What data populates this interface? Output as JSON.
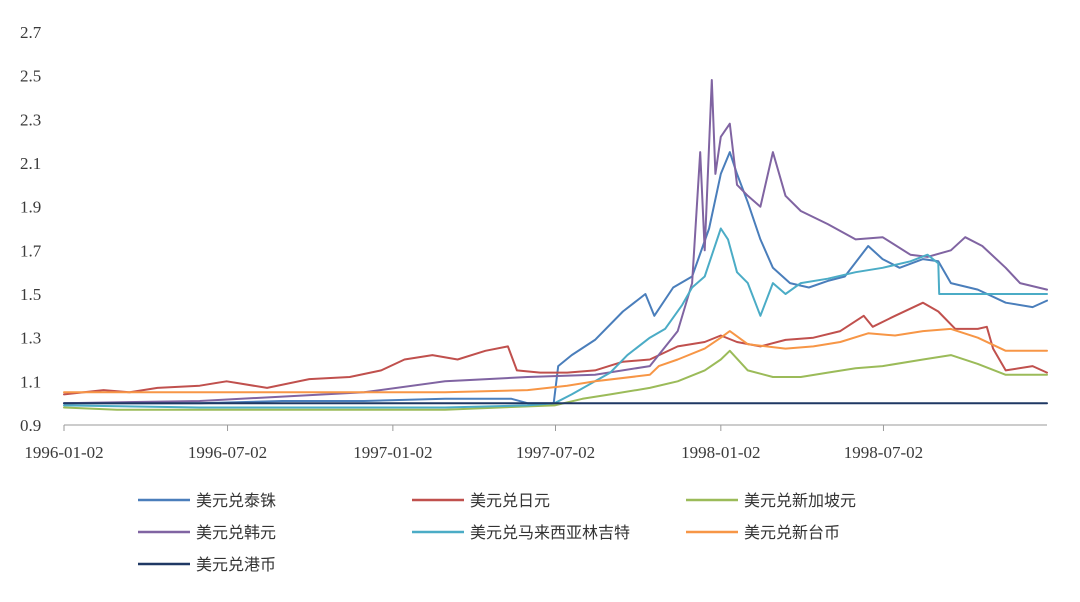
{
  "chart_data": {
    "type": "line",
    "title": "",
    "xlabel": "",
    "ylabel": "",
    "ylim": [
      0.9,
      2.7
    ],
    "y_ticks": [
      "0.9",
      "1.1",
      "1.3",
      "1.5",
      "1.7",
      "1.9",
      "2.1",
      "2.3",
      "2.5",
      "2.7"
    ],
    "x_tick_labels": [
      "1996-01-02",
      "1996-07-02",
      "1997-01-02",
      "1997-07-02",
      "1998-01-02",
      "1998-07-02"
    ],
    "x_range": [
      "1996-01-02",
      "1998-12-31"
    ],
    "grid": false,
    "legend_position": "bottom",
    "series": [
      {
        "name": "美元兑泰铢",
        "color": "#4a7ebb",
        "points": [
          [
            "1996-01-02",
            1.0
          ],
          [
            "1996-03-01",
            1.0
          ],
          [
            "1996-06-01",
            1.0
          ],
          [
            "1996-09-01",
            1.01
          ],
          [
            "1996-12-01",
            1.01
          ],
          [
            "1997-03-01",
            1.02
          ],
          [
            "1997-05-14",
            1.02
          ],
          [
            "1997-06-01",
            1.0
          ],
          [
            "1997-06-30",
            1.0
          ],
          [
            "1997-07-05",
            1.17
          ],
          [
            "1997-07-20",
            1.22
          ],
          [
            "1997-08-15",
            1.29
          ],
          [
            "1997-09-15",
            1.42
          ],
          [
            "1997-10-10",
            1.5
          ],
          [
            "1997-10-20",
            1.4
          ],
          [
            "1997-11-10",
            1.53
          ],
          [
            "1997-12-01",
            1.58
          ],
          [
            "1997-12-20",
            1.8
          ],
          [
            "1998-01-02",
            2.05
          ],
          [
            "1998-01-12",
            2.15
          ],
          [
            "1998-01-20",
            2.05
          ],
          [
            "1998-02-01",
            1.92
          ],
          [
            "1998-02-15",
            1.75
          ],
          [
            "1998-03-01",
            1.62
          ],
          [
            "1998-03-20",
            1.55
          ],
          [
            "1998-04-10",
            1.53
          ],
          [
            "1998-05-01",
            1.56
          ],
          [
            "1998-05-20",
            1.58
          ],
          [
            "1998-06-15",
            1.72
          ],
          [
            "1998-07-01",
            1.66
          ],
          [
            "1998-07-20",
            1.62
          ],
          [
            "1998-08-15",
            1.66
          ],
          [
            "1998-09-01",
            1.65
          ],
          [
            "1998-09-15",
            1.55
          ],
          [
            "1998-10-15",
            1.52
          ],
          [
            "1998-11-15",
            1.46
          ],
          [
            "1998-12-15",
            1.44
          ],
          [
            "1998-12-31",
            1.47
          ]
        ]
      },
      {
        "name": "美元兑日元",
        "color": "#c0504d",
        "points": [
          [
            "1996-01-02",
            1.04
          ],
          [
            "1996-02-15",
            1.06
          ],
          [
            "1996-03-15",
            1.05
          ],
          [
            "1996-04-15",
            1.07
          ],
          [
            "1996-06-01",
            1.08
          ],
          [
            "1996-07-01",
            1.1
          ],
          [
            "1996-08-15",
            1.07
          ],
          [
            "1996-10-01",
            1.11
          ],
          [
            "1996-11-15",
            1.12
          ],
          [
            "1996-12-20",
            1.15
          ],
          [
            "1997-01-15",
            1.2
          ],
          [
            "1997-02-15",
            1.22
          ],
          [
            "1997-03-15",
            1.2
          ],
          [
            "1997-04-15",
            1.24
          ],
          [
            "1997-05-10",
            1.26
          ],
          [
            "1997-05-20",
            1.15
          ],
          [
            "1997-06-15",
            1.14
          ],
          [
            "1997-07-15",
            1.14
          ],
          [
            "1997-08-15",
            1.15
          ],
          [
            "1997-09-15",
            1.19
          ],
          [
            "1997-10-15",
            1.2
          ],
          [
            "1997-11-15",
            1.26
          ],
          [
            "1997-12-15",
            1.28
          ],
          [
            "1998-01-02",
            1.31
          ],
          [
            "1998-01-20",
            1.28
          ],
          [
            "1998-02-15",
            1.26
          ],
          [
            "1998-03-15",
            1.29
          ],
          [
            "1998-04-15",
            1.3
          ],
          [
            "1998-05-15",
            1.33
          ],
          [
            "1998-06-10",
            1.4
          ],
          [
            "1998-06-20",
            1.35
          ],
          [
            "1998-07-15",
            1.4
          ],
          [
            "1998-08-15",
            1.46
          ],
          [
            "1998-09-01",
            1.42
          ],
          [
            "1998-09-20",
            1.34
          ],
          [
            "1998-10-05",
            1.34
          ],
          [
            "1998-10-15",
            1.34
          ],
          [
            "1998-10-25",
            1.35
          ],
          [
            "1998-11-01",
            1.25
          ],
          [
            "1998-11-15",
            1.15
          ],
          [
            "1998-12-15",
            1.17
          ],
          [
            "1998-12-31",
            1.14
          ]
        ]
      },
      {
        "name": "美元兑新加坡元",
        "color": "#9bbb59",
        "points": [
          [
            "1996-01-02",
            0.98
          ],
          [
            "1996-03-01",
            0.97
          ],
          [
            "1996-06-01",
            0.97
          ],
          [
            "1996-09-01",
            0.97
          ],
          [
            "1996-12-01",
            0.97
          ],
          [
            "1997-03-01",
            0.97
          ],
          [
            "1997-05-01",
            0.98
          ],
          [
            "1997-07-01",
            0.99
          ],
          [
            "1997-08-01",
            1.02
          ],
          [
            "1997-09-01",
            1.04
          ],
          [
            "1997-10-15",
            1.07
          ],
          [
            "1997-11-15",
            1.1
          ],
          [
            "1997-12-15",
            1.15
          ],
          [
            "1998-01-02",
            1.2
          ],
          [
            "1998-01-12",
            1.24
          ],
          [
            "1998-02-01",
            1.15
          ],
          [
            "1998-03-01",
            1.12
          ],
          [
            "1998-04-01",
            1.12
          ],
          [
            "1998-05-01",
            1.14
          ],
          [
            "1998-06-01",
            1.16
          ],
          [
            "1998-07-01",
            1.17
          ],
          [
            "1998-08-15",
            1.2
          ],
          [
            "1998-09-15",
            1.22
          ],
          [
            "1998-10-15",
            1.18
          ],
          [
            "1998-11-15",
            1.13
          ],
          [
            "1998-12-31",
            1.13
          ]
        ]
      },
      {
        "name": "美元兑韩元",
        "color": "#8064a2",
        "points": [
          [
            "1996-01-02",
            1.0
          ],
          [
            "1996-06-01",
            1.01
          ],
          [
            "1996-09-01",
            1.03
          ],
          [
            "1996-12-01",
            1.05
          ],
          [
            "1997-03-01",
            1.1
          ],
          [
            "1997-06-01",
            1.12
          ],
          [
            "1997-08-15",
            1.13
          ],
          [
            "1997-10-15",
            1.17
          ],
          [
            "1997-11-15",
            1.33
          ],
          [
            "1997-12-01",
            1.55
          ],
          [
            "1997-12-10",
            2.15
          ],
          [
            "1997-12-15",
            1.7
          ],
          [
            "1997-12-23",
            2.48
          ],
          [
            "1997-12-27",
            2.05
          ],
          [
            "1998-01-02",
            2.22
          ],
          [
            "1998-01-12",
            2.28
          ],
          [
            "1998-01-20",
            2.0
          ],
          [
            "1998-02-01",
            1.95
          ],
          [
            "1998-02-15",
            1.9
          ],
          [
            "1998-03-01",
            2.15
          ],
          [
            "1998-03-15",
            1.95
          ],
          [
            "1998-04-01",
            1.88
          ],
          [
            "1998-05-01",
            1.82
          ],
          [
            "1998-06-01",
            1.75
          ],
          [
            "1998-07-01",
            1.76
          ],
          [
            "1998-08-01",
            1.68
          ],
          [
            "1998-08-20",
            1.67
          ],
          [
            "1998-09-15",
            1.7
          ],
          [
            "1998-10-01",
            1.76
          ],
          [
            "1998-10-20",
            1.72
          ],
          [
            "1998-11-15",
            1.62
          ],
          [
            "1998-12-01",
            1.55
          ],
          [
            "1998-12-31",
            1.52
          ]
        ]
      },
      {
        "name": "美元兑马来西亚林吉特",
        "color": "#4bacc6",
        "points": [
          [
            "1996-01-02",
            0.99
          ],
          [
            "1996-06-01",
            0.98
          ],
          [
            "1996-12-01",
            0.98
          ],
          [
            "1997-03-01",
            0.98
          ],
          [
            "1997-06-01",
            0.99
          ],
          [
            "1997-07-01",
            1.0
          ],
          [
            "1997-07-20",
            1.04
          ],
          [
            "1997-08-15",
            1.1
          ],
          [
            "1997-09-01",
            1.14
          ],
          [
            "1997-09-20",
            1.22
          ],
          [
            "1997-10-15",
            1.3
          ],
          [
            "1997-11-01",
            1.34
          ],
          [
            "1997-11-20",
            1.45
          ],
          [
            "1997-12-01",
            1.53
          ],
          [
            "1997-12-15",
            1.58
          ],
          [
            "1998-01-02",
            1.8
          ],
          [
            "1998-01-10",
            1.75
          ],
          [
            "1998-01-20",
            1.6
          ],
          [
            "1998-02-01",
            1.55
          ],
          [
            "1998-02-15",
            1.4
          ],
          [
            "1998-03-01",
            1.55
          ],
          [
            "1998-03-15",
            1.5
          ],
          [
            "1998-04-01",
            1.55
          ],
          [
            "1998-05-01",
            1.57
          ],
          [
            "1998-06-01",
            1.6
          ],
          [
            "1998-07-01",
            1.62
          ],
          [
            "1998-08-01",
            1.65
          ],
          [
            "1998-08-20",
            1.68
          ],
          [
            "1998-09-01",
            1.64
          ],
          [
            "1998-09-02",
            1.5
          ],
          [
            "1998-12-31",
            1.5
          ]
        ]
      },
      {
        "name": "美元兑新台币",
        "color": "#f79646",
        "points": [
          [
            "1996-01-02",
            1.05
          ],
          [
            "1996-06-01",
            1.05
          ],
          [
            "1996-12-01",
            1.05
          ],
          [
            "1997-03-01",
            1.05
          ],
          [
            "1997-06-01",
            1.06
          ],
          [
            "1997-07-15",
            1.08
          ],
          [
            "1997-08-15",
            1.1
          ],
          [
            "1997-10-15",
            1.13
          ],
          [
            "1997-10-25",
            1.17
          ],
          [
            "1997-11-15",
            1.2
          ],
          [
            "1997-12-15",
            1.25
          ],
          [
            "1998-01-02",
            1.3
          ],
          [
            "1998-01-12",
            1.33
          ],
          [
            "1998-02-01",
            1.27
          ],
          [
            "1998-03-15",
            1.25
          ],
          [
            "1998-04-15",
            1.26
          ],
          [
            "1998-05-15",
            1.28
          ],
          [
            "1998-06-15",
            1.32
          ],
          [
            "1998-07-15",
            1.31
          ],
          [
            "1998-08-15",
            1.33
          ],
          [
            "1998-09-15",
            1.34
          ],
          [
            "1998-10-15",
            1.3
          ],
          [
            "1998-11-15",
            1.24
          ],
          [
            "1998-12-31",
            1.24
          ]
        ]
      },
      {
        "name": "美元兑港币",
        "color": "#1f3864",
        "points": [
          [
            "1996-01-02",
            1.0
          ],
          [
            "1996-12-01",
            1.0
          ],
          [
            "1997-06-01",
            1.0
          ],
          [
            "1997-12-01",
            1.0
          ],
          [
            "1998-06-01",
            1.0
          ],
          [
            "1998-12-31",
            1.0
          ]
        ]
      }
    ]
  }
}
